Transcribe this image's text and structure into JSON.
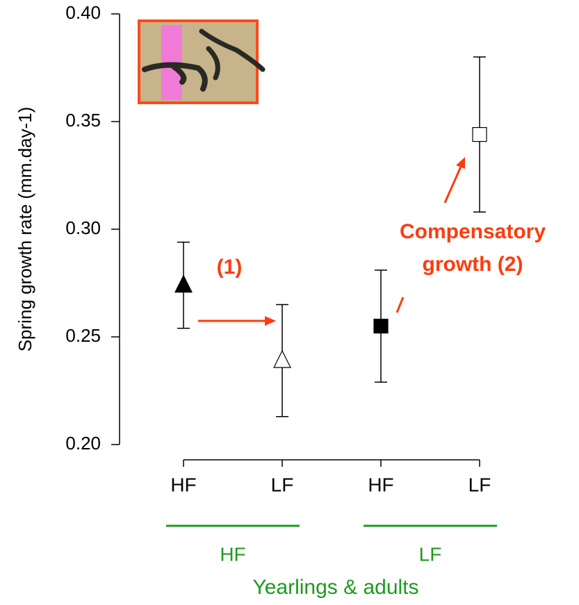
{
  "chart_data": {
    "type": "errorbar",
    "y_label": "Spring growth rate (mm.day-1)",
    "categories": [
      "HF",
      "LF",
      "HF",
      "LF"
    ],
    "values": [
      0.274,
      0.239,
      0.255,
      0.344
    ],
    "errors": [
      0.02,
      0.026,
      0.026,
      0.036
    ],
    "markers": [
      "triangle",
      "triangle",
      "square",
      "square"
    ],
    "fills": [
      "#000000",
      "#ffffff",
      "#000000",
      "#ffffff"
    ],
    "groups": [
      "HF",
      "LF"
    ],
    "group_title": "Yearlings & adults",
    "group_color": "#1e9a1e",
    "annotations": [
      "(1)",
      "Compensatory",
      "growth (2)"
    ],
    "annotation_color": "#ff3b0f",
    "ylim": [
      0.2,
      0.4
    ],
    "yticks": [
      {
        "value": 0.2,
        "label": "0.20"
      },
      {
        "value": 0.25,
        "label": "0.25"
      },
      {
        "value": 0.3,
        "label": "0.30"
      },
      {
        "value": 0.35,
        "label": "0.35"
      },
      {
        "value": 0.4,
        "label": "0.40"
      }
    ]
  }
}
